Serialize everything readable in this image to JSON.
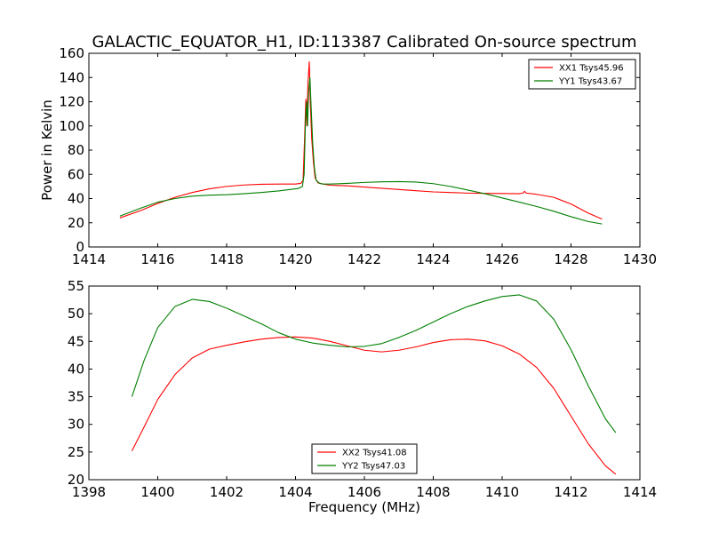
{
  "title": "GALACTIC_EQUATOR_H1, ID:113387 Calibrated On-source spectrum",
  "colors": {
    "red": "#ff0000",
    "green": "#007f00"
  },
  "chart_data": [
    {
      "type": "line",
      "xlabel": "",
      "ylabel": "Power in Kelvin",
      "xlim": [
        1414,
        1430
      ],
      "ylim": [
        0,
        160
      ],
      "xticks": [
        1414,
        1416,
        1418,
        1420,
        1422,
        1424,
        1426,
        1428,
        1430
      ],
      "yticks": [
        0,
        20,
        40,
        60,
        80,
        100,
        120,
        140,
        160
      ],
      "legend_position": "top-right",
      "series": [
        {
          "name": "XX1 Tsys45.96",
          "color": "#ff0000",
          "x": [
            1414.9,
            1415.5,
            1416,
            1416.5,
            1417,
            1417.5,
            1418,
            1418.5,
            1419,
            1419.5,
            1420,
            1420.15,
            1420.22,
            1420.27,
            1420.3,
            1420.33,
            1420.36,
            1420.4,
            1420.43,
            1420.47,
            1420.52,
            1420.57,
            1420.65,
            1420.8,
            1421,
            1421.5,
            1422,
            1422.5,
            1423,
            1423.5,
            1424,
            1424.5,
            1425,
            1425.5,
            1426,
            1426.5,
            1426.6,
            1426.65,
            1426.7,
            1427,
            1427.5,
            1428,
            1428.5,
            1428.9
          ],
          "y": [
            24,
            30,
            36,
            41,
            45,
            48,
            50,
            51.2,
            51.8,
            52,
            52,
            52.5,
            55,
            95,
            122,
            100,
            135,
            153,
            120,
            90,
            70,
            57,
            53,
            52,
            51,
            50.5,
            49.5,
            48.5,
            47.5,
            46.5,
            45.5,
            45,
            44.5,
            44.3,
            44.2,
            44,
            44.5,
            46,
            44.5,
            43.5,
            41,
            35.5,
            28,
            23
          ]
        },
        {
          "name": "YY1 Tsys43.67",
          "color": "#007f00",
          "x": [
            1414.9,
            1415.5,
            1416,
            1416.5,
            1417,
            1417.5,
            1418,
            1418.5,
            1419,
            1419.5,
            1420,
            1420.1,
            1420.2,
            1420.25,
            1420.29,
            1420.32,
            1420.35,
            1420.38,
            1420.42,
            1420.45,
            1420.5,
            1420.55,
            1420.6,
            1420.7,
            1420.8,
            1421,
            1421.5,
            1422,
            1422.5,
            1423,
            1423.5,
            1424,
            1424.5,
            1425,
            1425.5,
            1426,
            1426.5,
            1427,
            1427.5,
            1428,
            1428.5,
            1428.9
          ],
          "y": [
            25.5,
            32,
            37,
            40,
            42,
            42.8,
            43.2,
            44,
            45,
            46.3,
            48,
            48.5,
            50,
            60,
            105,
            120,
            100,
            128,
            140,
            118,
            85,
            65,
            55,
            52.5,
            52,
            52,
            52.5,
            53.3,
            53.8,
            54,
            53.6,
            52.3,
            50,
            47,
            44,
            40.5,
            37,
            33.5,
            29.5,
            25,
            21,
            19
          ]
        }
      ]
    },
    {
      "type": "line",
      "xlabel": "Frequency (MHz)",
      "ylabel": "",
      "xlim": [
        1398,
        1414
      ],
      "ylim": [
        20,
        55
      ],
      "xticks": [
        1398,
        1400,
        1402,
        1404,
        1406,
        1408,
        1410,
        1412,
        1414
      ],
      "yticks": [
        20,
        25,
        30,
        35,
        40,
        45,
        50,
        55
      ],
      "legend_position": "bottom-center",
      "series": [
        {
          "name": "XX2 Tsys41.08",
          "color": "#ff0000",
          "x": [
            1399.25,
            1399.6,
            1400,
            1400.5,
            1401,
            1401.5,
            1402,
            1402.5,
            1403,
            1403.5,
            1404,
            1404.5,
            1405,
            1405.5,
            1406,
            1406.5,
            1407,
            1407.5,
            1408,
            1408.5,
            1409,
            1409.5,
            1410,
            1410.5,
            1411,
            1411.5,
            1412,
            1412.5,
            1413,
            1413.3
          ],
          "y": [
            25.2,
            29.5,
            34.5,
            39,
            42,
            43.6,
            44.3,
            44.9,
            45.4,
            45.7,
            45.8,
            45.6,
            45,
            44.2,
            43.4,
            43.1,
            43.4,
            44,
            44.8,
            45.3,
            45.4,
            45.1,
            44.2,
            42.7,
            40.3,
            36.5,
            31.5,
            26.5,
            22.5,
            21
          ]
        },
        {
          "name": "YY2 Tsys47.03",
          "color": "#007f00",
          "x": [
            1399.25,
            1399.6,
            1400,
            1400.5,
            1401,
            1401.5,
            1402,
            1402.5,
            1403,
            1403.5,
            1404,
            1404.5,
            1405,
            1405.5,
            1406,
            1406.5,
            1407,
            1407.5,
            1408,
            1408.5,
            1409,
            1409.5,
            1410,
            1410.5,
            1411,
            1411.5,
            1412,
            1412.5,
            1413,
            1413.3
          ],
          "y": [
            35,
            41.5,
            47.5,
            51.3,
            52.6,
            52.2,
            51,
            49.6,
            48.2,
            46.6,
            45.4,
            44.7,
            44.3,
            44,
            44.1,
            44.6,
            45.7,
            47,
            48.5,
            50,
            51.3,
            52.3,
            53.1,
            53.4,
            52.3,
            49,
            43.5,
            37,
            31,
            28.5
          ]
        }
      ]
    }
  ]
}
